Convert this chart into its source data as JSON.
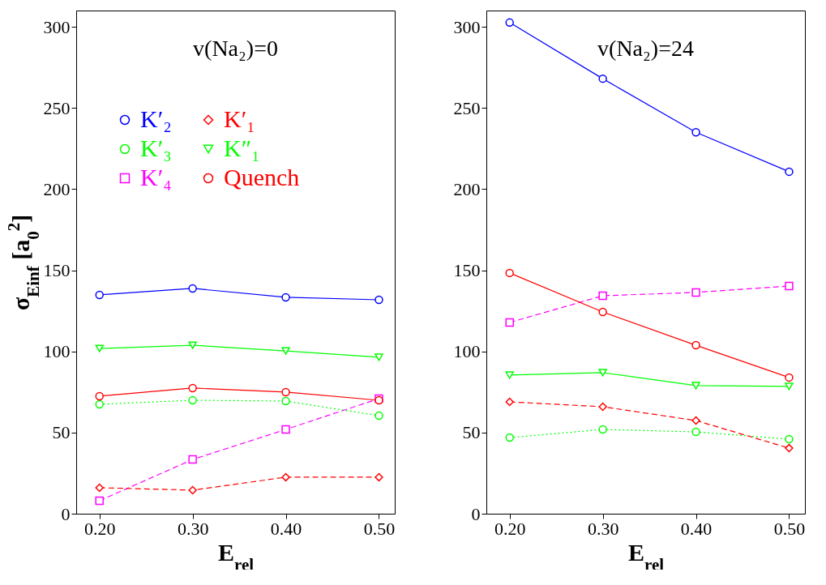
{
  "chart_data": [
    {
      "type": "line",
      "title": "v(Na₂)=0",
      "xlabel": "E$_{rel}$",
      "ylabel": "σ$_{Einf}$ [a$_{0}$$^{2}$]",
      "x": [
        0.2,
        0.3,
        0.4,
        0.5
      ],
      "xlim": [
        0.175,
        0.517
      ],
      "ylim": [
        0,
        310
      ],
      "xticks": [
        {
          "value": 0.2,
          "label": "0.20"
        },
        {
          "value": 0.3,
          "label": "0.30"
        },
        {
          "value": 0.4,
          "label": "0.40"
        },
        {
          "value": 0.5,
          "label": "0.50"
        }
      ],
      "yticks": [
        0,
        50,
        100,
        150,
        200,
        250,
        300
      ],
      "legend": "top left",
      "grid": false,
      "series": [
        {
          "name": "K′₂",
          "color": "#0000ff",
          "marker": "circle",
          "line_style": "solid",
          "values": [
            134.8,
            138.8,
            133.3,
            131.8
          ]
        },
        {
          "name": "K′₃",
          "color": "#00ff00",
          "marker": "circle",
          "line_style": "dotted",
          "values": [
            67.4,
            69.9,
            69.4,
            60.4
          ]
        },
        {
          "name": "K′₄",
          "color": "#ff00ff",
          "marker": "square",
          "line_style": "dashed",
          "values": [
            8,
            33.4,
            51.9,
            70.9
          ]
        },
        {
          "name": "K′₁",
          "color": "#ff0000",
          "marker": "diamond",
          "line_style": "dashed",
          "values": [
            16,
            14.5,
            22.5,
            22.5
          ]
        },
        {
          "name": "K″₁",
          "color": "#00ff00",
          "marker": "triangle",
          "line_style": "solid",
          "values": [
            101.8,
            103.8,
            100.3,
            96.4
          ]
        },
        {
          "name": "Quench",
          "color": "#ff0000",
          "marker": "circle",
          "line_style": "solid",
          "values": [
            72.4,
            77.4,
            74.9,
            69.9
          ]
        }
      ]
    },
    {
      "type": "line",
      "title": "v(Na₂)=24",
      "xlabel": "E$_{rel}$",
      "x": [
        0.2,
        0.3,
        0.4,
        0.5
      ],
      "xlim": [
        0.175,
        0.517
      ],
      "ylim": [
        0,
        310
      ],
      "xticks": [
        {
          "value": 0.2,
          "label": "0.20"
        },
        {
          "value": 0.3,
          "label": "0.30"
        },
        {
          "value": 0.4,
          "label": "0.40"
        },
        {
          "value": 0.5,
          "label": "0.50"
        }
      ],
      "yticks": [
        0,
        50,
        100,
        150,
        200,
        250,
        300
      ],
      "grid": false,
      "series": [
        {
          "color": "#0000ff",
          "marker": "circle",
          "line_style": "solid",
          "values": [
            302.6,
            268,
            235,
            210.7
          ]
        },
        {
          "color": "#00ff00",
          "marker": "circle",
          "line_style": "dotted",
          "values": [
            46.9,
            51.9,
            50.4,
            45.9
          ]
        },
        {
          "color": "#ff00ff",
          "marker": "square",
          "line_style": "dashed",
          "values": [
            117.8,
            134.3,
            136.3,
            140.3
          ]
        },
        {
          "color": "#ff0000",
          "marker": "diamond",
          "line_style": "dashed",
          "values": [
            68.9,
            65.9,
            57.4,
            40.4
          ]
        },
        {
          "color": "#00ff00",
          "marker": "triangle",
          "line_style": "solid",
          "values": [
            85.4,
            86.9,
            78.9,
            78.4
          ]
        },
        {
          "color": "#ff0000",
          "marker": "circle",
          "line_style": "solid",
          "values": [
            148.3,
            124.3,
            103.8,
            83.9
          ]
        }
      ]
    }
  ]
}
